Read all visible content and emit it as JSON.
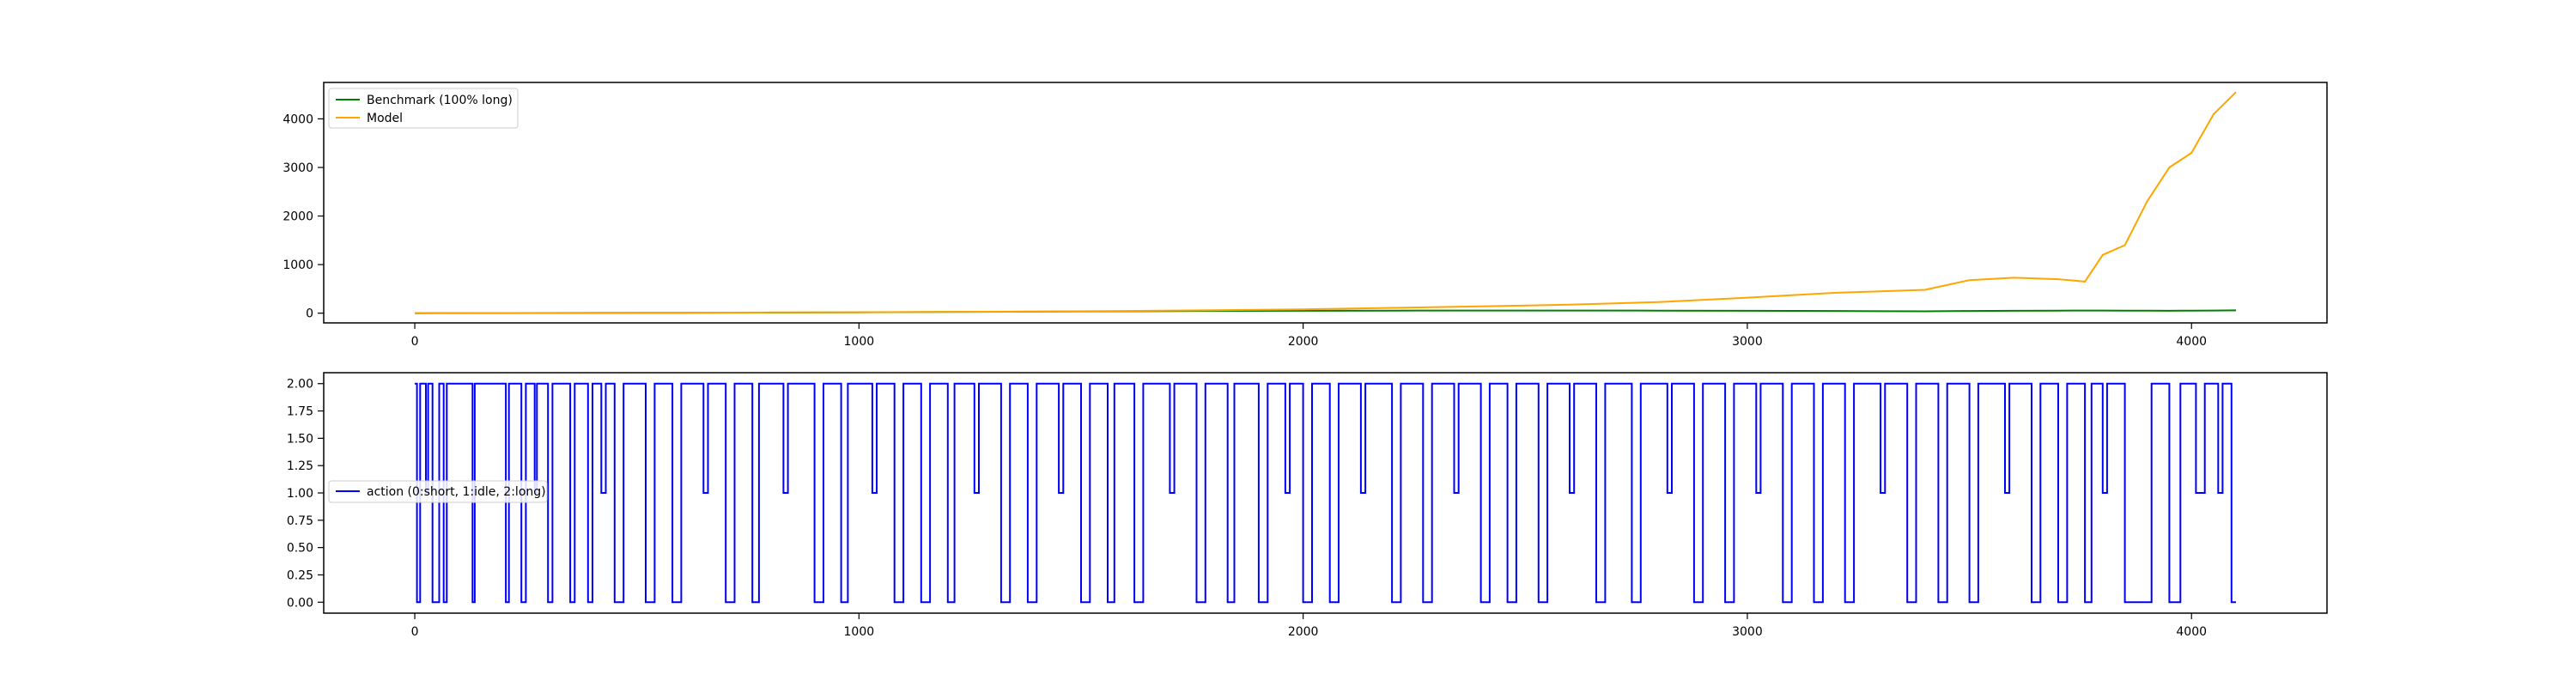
{
  "chart_data": [
    {
      "type": "line",
      "title": "",
      "xlabel": "",
      "ylabel": "",
      "xlim": [
        -205,
        4305
      ],
      "ylim": [
        -200,
        4750
      ],
      "xticks": [
        0,
        1000,
        2000,
        3000,
        4000
      ],
      "yticks": [
        0,
        1000,
        2000,
        3000,
        4000
      ],
      "grid": false,
      "legend_position": "upper left",
      "x": [
        0,
        200,
        400,
        600,
        800,
        1000,
        1200,
        1400,
        1600,
        1800,
        2000,
        2200,
        2400,
        2600,
        2800,
        3000,
        3100,
        3200,
        3300,
        3400,
        3500,
        3600,
        3700,
        3760,
        3800,
        3850,
        3900,
        3950,
        4000,
        4050,
        4100
      ],
      "series": [
        {
          "name": "Benchmark (100% long)",
          "color": "#008000",
          "values": [
            0,
            2,
            5,
            8,
            12,
            18,
            25,
            32,
            38,
            45,
            50,
            52,
            55,
            55,
            53,
            50,
            48,
            45,
            40,
            38,
            45,
            50,
            52,
            54,
            55,
            53,
            52,
            50,
            52,
            55,
            58
          ]
        },
        {
          "name": "Model",
          "color": "#ffa500",
          "values": [
            0,
            3,
            6,
            10,
            15,
            20,
            28,
            35,
            45,
            60,
            80,
            110,
            140,
            175,
            230,
            320,
            370,
            420,
            450,
            480,
            680,
            730,
            700,
            650,
            1200,
            1400,
            2300,
            3000,
            3300,
            4100,
            4550
          ]
        }
      ]
    },
    {
      "type": "line",
      "step": true,
      "title": "",
      "xlabel": "",
      "ylabel": "",
      "xlim": [
        -205,
        4305
      ],
      "ylim": [
        -0.1,
        2.1
      ],
      "xticks": [
        0,
        1000,
        2000,
        3000,
        4000
      ],
      "yticks": [
        0.0,
        0.25,
        0.5,
        0.75,
        1.0,
        1.25,
        1.5,
        1.75,
        2.0
      ],
      "grid": false,
      "legend_position": "center left",
      "series": [
        {
          "name": "action (0:short, 1:idle, 2:long)",
          "color": "#0000ff",
          "segments": [
            [
              0,
              2
            ],
            [
              5,
              0
            ],
            [
              12,
              2
            ],
            [
              25,
              1
            ],
            [
              30,
              2
            ],
            [
              40,
              0
            ],
            [
              55,
              2
            ],
            [
              65,
              0
            ],
            [
              72,
              2
            ],
            [
              130,
              0
            ],
            [
              135,
              2
            ],
            [
              205,
              0
            ],
            [
              212,
              2
            ],
            [
              240,
              0
            ],
            [
              250,
              2
            ],
            [
              270,
              1
            ],
            [
              275,
              2
            ],
            [
              300,
              0
            ],
            [
              310,
              2
            ],
            [
              350,
              0
            ],
            [
              360,
              2
            ],
            [
              390,
              0
            ],
            [
              400,
              2
            ],
            [
              420,
              1
            ],
            [
              430,
              2
            ],
            [
              450,
              0
            ],
            [
              470,
              2
            ],
            [
              520,
              0
            ],
            [
              540,
              2
            ],
            [
              580,
              0
            ],
            [
              600,
              2
            ],
            [
              650,
              1
            ],
            [
              660,
              2
            ],
            [
              700,
              0
            ],
            [
              720,
              2
            ],
            [
              760,
              0
            ],
            [
              775,
              2
            ],
            [
              830,
              1
            ],
            [
              840,
              2
            ],
            [
              900,
              0
            ],
            [
              920,
              2
            ],
            [
              960,
              0
            ],
            [
              975,
              2
            ],
            [
              1030,
              1
            ],
            [
              1040,
              2
            ],
            [
              1080,
              0
            ],
            [
              1100,
              2
            ],
            [
              1140,
              0
            ],
            [
              1160,
              2
            ],
            [
              1200,
              0
            ],
            [
              1215,
              2
            ],
            [
              1260,
              1
            ],
            [
              1270,
              2
            ],
            [
              1320,
              0
            ],
            [
              1340,
              2
            ],
            [
              1380,
              0
            ],
            [
              1400,
              2
            ],
            [
              1450,
              1
            ],
            [
              1460,
              2
            ],
            [
              1500,
              0
            ],
            [
              1520,
              2
            ],
            [
              1560,
              0
            ],
            [
              1575,
              2
            ],
            [
              1620,
              0
            ],
            [
              1640,
              2
            ],
            [
              1700,
              1
            ],
            [
              1710,
              2
            ],
            [
              1760,
              0
            ],
            [
              1780,
              2
            ],
            [
              1830,
              0
            ],
            [
              1845,
              2
            ],
            [
              1900,
              0
            ],
            [
              1920,
              2
            ],
            [
              1960,
              1
            ],
            [
              1970,
              2
            ],
            [
              2000,
              0
            ],
            [
              2020,
              2
            ],
            [
              2060,
              0
            ],
            [
              2080,
              2
            ],
            [
              2130,
              1
            ],
            [
              2140,
              2
            ],
            [
              2200,
              0
            ],
            [
              2220,
              2
            ],
            [
              2270,
              0
            ],
            [
              2290,
              2
            ],
            [
              2340,
              1
            ],
            [
              2350,
              2
            ],
            [
              2400,
              0
            ],
            [
              2420,
              2
            ],
            [
              2460,
              0
            ],
            [
              2480,
              2
            ],
            [
              2530,
              0
            ],
            [
              2550,
              2
            ],
            [
              2600,
              1
            ],
            [
              2610,
              2
            ],
            [
              2660,
              0
            ],
            [
              2680,
              2
            ],
            [
              2740,
              0
            ],
            [
              2760,
              2
            ],
            [
              2820,
              1
            ],
            [
              2830,
              2
            ],
            [
              2880,
              0
            ],
            [
              2900,
              2
            ],
            [
              2950,
              0
            ],
            [
              2970,
              2
            ],
            [
              3020,
              1
            ],
            [
              3030,
              2
            ],
            [
              3080,
              0
            ],
            [
              3100,
              2
            ],
            [
              3150,
              0
            ],
            [
              3170,
              2
            ],
            [
              3220,
              0
            ],
            [
              3240,
              2
            ],
            [
              3300,
              1
            ],
            [
              3310,
              2
            ],
            [
              3360,
              0
            ],
            [
              3380,
              2
            ],
            [
              3430,
              0
            ],
            [
              3450,
              2
            ],
            [
              3500,
              0
            ],
            [
              3520,
              2
            ],
            [
              3580,
              1
            ],
            [
              3590,
              2
            ],
            [
              3640,
              0
            ],
            [
              3660,
              2
            ],
            [
              3700,
              0
            ],
            [
              3720,
              2
            ],
            [
              3760,
              0
            ],
            [
              3775,
              2
            ],
            [
              3800,
              1
            ],
            [
              3810,
              2
            ],
            [
              3850,
              0
            ],
            [
              3910,
              2
            ],
            [
              3950,
              0
            ],
            [
              3975,
              2
            ],
            [
              4010,
              1
            ],
            [
              4030,
              2
            ],
            [
              4060,
              1
            ],
            [
              4070,
              2
            ],
            [
              4090,
              0
            ],
            [
              4100,
              0
            ]
          ]
        }
      ]
    }
  ]
}
